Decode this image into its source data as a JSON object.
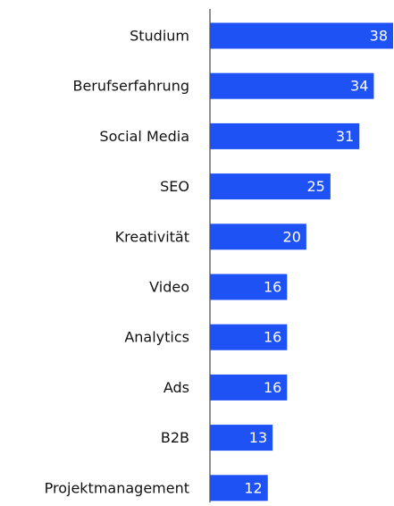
{
  "chart_data": {
    "type": "bar",
    "orientation": "horizontal",
    "categories": [
      "Studium",
      "Berufserfahrung",
      "Social Media",
      "SEO",
      "Kreativität",
      "Video",
      "Analytics",
      "Ads",
      "B2B",
      "Projektmanagement"
    ],
    "values": [
      38,
      34,
      31,
      25,
      20,
      16,
      16,
      16,
      13,
      12
    ],
    "color": "#1f52f4"
  }
}
